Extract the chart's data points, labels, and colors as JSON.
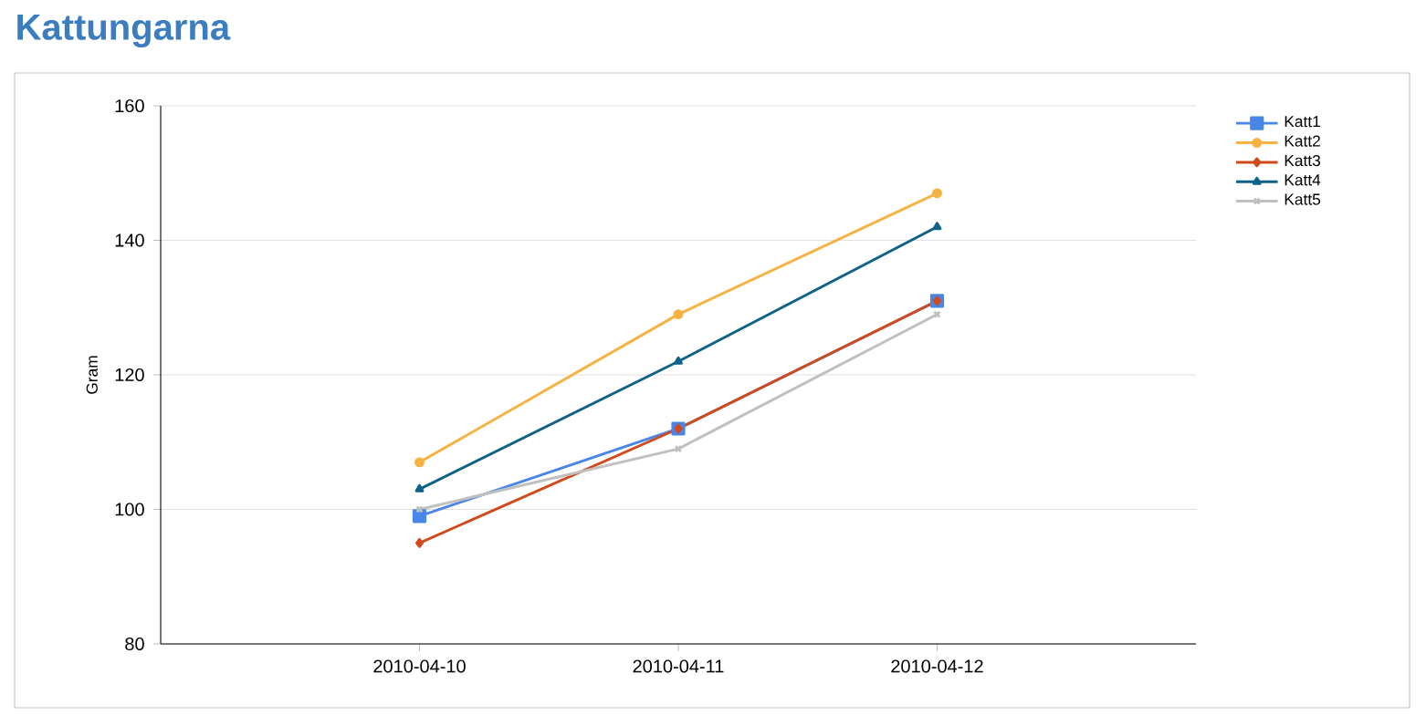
{
  "chart_data": {
    "type": "line",
    "title": "Kattungarna",
    "ylabel": "Gram",
    "categories": [
      "2010-04-10",
      "2010-04-11",
      "2010-04-12"
    ],
    "series": [
      {
        "name": "Katt1",
        "color": "#4a86e8",
        "marker": "square",
        "values": [
          99,
          112,
          131
        ]
      },
      {
        "name": "Katt2",
        "color": "#f6b242",
        "marker": "circle",
        "values": [
          107,
          129,
          147
        ]
      },
      {
        "name": "Katt3",
        "color": "#d04a1c",
        "marker": "diamond",
        "values": [
          95,
          112,
          131
        ]
      },
      {
        "name": "Katt4",
        "color": "#0e6187",
        "marker": "triangle",
        "values": [
          103,
          122,
          142
        ]
      },
      {
        "name": "Katt5",
        "color": "#c0c0c0",
        "marker": "cross",
        "values": [
          100,
          109,
          129
        ]
      }
    ],
    "ylim": [
      80,
      160
    ],
    "yticks": [
      80,
      100,
      120,
      140,
      160
    ],
    "grid": "y",
    "legend": "top right"
  }
}
